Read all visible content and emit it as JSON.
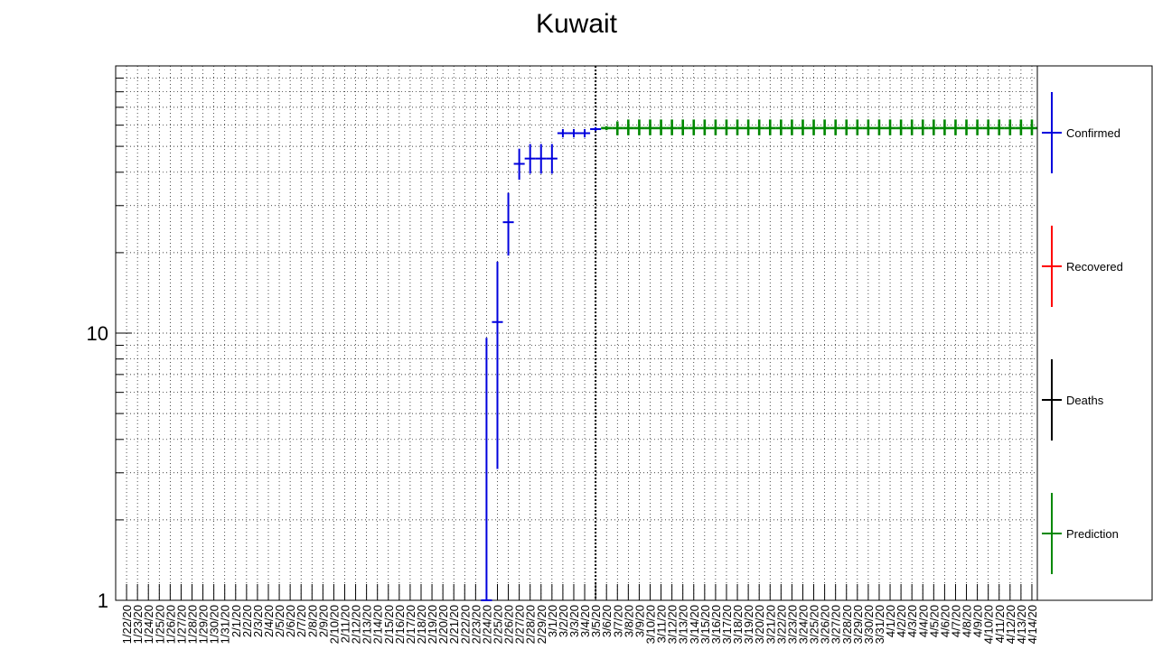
{
  "chart_data": {
    "type": "scatter",
    "title": "Kuwait",
    "xlabel": "",
    "ylabel": "",
    "yscale": "log",
    "ylim": [
      1,
      100
    ],
    "y_tick_labels": [
      "1",
      "10"
    ],
    "grid": true,
    "legend_position": "right",
    "categories": [
      "1/22/20",
      "1/23/20",
      "1/24/20",
      "1/25/20",
      "1/26/20",
      "1/27/20",
      "1/28/20",
      "1/29/20",
      "1/30/20",
      "1/31/20",
      "2/1/20",
      "2/2/20",
      "2/3/20",
      "2/4/20",
      "2/5/20",
      "2/6/20",
      "2/7/20",
      "2/8/20",
      "2/9/20",
      "2/10/20",
      "2/11/20",
      "2/12/20",
      "2/13/20",
      "2/14/20",
      "2/15/20",
      "2/16/20",
      "2/17/20",
      "2/18/20",
      "2/19/20",
      "2/20/20",
      "2/21/20",
      "2/22/20",
      "2/23/20",
      "2/24/20",
      "2/25/20",
      "2/26/20",
      "2/27/20",
      "2/28/20",
      "2/29/20",
      "3/1/20",
      "3/2/20",
      "3/3/20",
      "3/4/20",
      "3/5/20",
      "3/6/20",
      "3/7/20",
      "3/8/20",
      "3/9/20",
      "3/10/20",
      "3/11/20",
      "3/12/20",
      "3/13/20",
      "3/14/20",
      "3/15/20",
      "3/16/20",
      "3/17/20",
      "3/18/20",
      "3/19/20",
      "3/20/20",
      "3/21/20",
      "3/22/20",
      "3/23/20",
      "3/24/20",
      "3/25/20",
      "3/26/20",
      "3/27/20",
      "3/28/20",
      "3/29/20",
      "3/30/20",
      "3/31/20",
      "4/1/20",
      "4/2/20",
      "4/3/20",
      "4/4/20",
      "4/5/20",
      "4/6/20",
      "4/7/20",
      "4/8/20",
      "4/9/20",
      "4/10/20",
      "4/11/20",
      "4/12/20",
      "4/13/20",
      "4/14/20"
    ],
    "vertical_line_category": "3/5/20",
    "series": [
      {
        "name": "Confirmed",
        "color": "#0000dd",
        "points": [
          {
            "x": "2/24/20",
            "y": 1,
            "yerr": [
              0,
              9.6
            ]
          },
          {
            "x": "2/25/20",
            "y": 11,
            "yerr": [
              3.1,
              18.5
            ]
          },
          {
            "x": "2/26/20",
            "y": 26,
            "yerr": [
              19.5,
              33.5
            ]
          },
          {
            "x": "2/27/20",
            "y": 43,
            "yerr": [
              37.5,
              49
            ]
          },
          {
            "x": "2/28/20",
            "y": 45,
            "yerr": [
              39.5,
              51
            ]
          },
          {
            "x": "2/29/20",
            "y": 45,
            "yerr": [
              39.5,
              51
            ]
          },
          {
            "x": "3/1/20",
            "y": 45,
            "yerr": [
              39.5,
              51
            ]
          },
          {
            "x": "3/2/20",
            "y": 56,
            "yerr": [
              54,
              58
            ]
          },
          {
            "x": "3/3/20",
            "y": 56,
            "yerr": [
              54,
              58
            ]
          },
          {
            "x": "3/4/20",
            "y": 56,
            "yerr": [
              54,
              58
            ]
          },
          {
            "x": "3/5/20",
            "y": 58,
            "yerr": [
              57,
              59
            ]
          }
        ]
      },
      {
        "name": "Recovered",
        "color": "#ff0000",
        "points": []
      },
      {
        "name": "Deaths",
        "color": "#000000",
        "points": []
      },
      {
        "name": "Prediction",
        "color": "#008800",
        "points": [
          {
            "x": "3/6/20",
            "y": 58.5,
            "yerr": [
              57.5,
              59.5
            ]
          },
          {
            "x": "3/7/20",
            "y": 58.5,
            "yerr": [
              55,
              62
            ]
          },
          {
            "x": "3/8/20",
            "y": 58.5,
            "yerr": [
              55,
              63
            ]
          },
          {
            "x": "3/9/20",
            "y": 58.5,
            "yerr": [
              55,
              63
            ]
          },
          {
            "x": "3/10/20",
            "y": 58.5,
            "yerr": [
              55,
              63
            ]
          },
          {
            "x": "3/11/20",
            "y": 58.5,
            "yerr": [
              55,
              63
            ]
          },
          {
            "x": "3/12/20",
            "y": 58.5,
            "yerr": [
              55,
              63
            ]
          },
          {
            "x": "3/13/20",
            "y": 58.5,
            "yerr": [
              55,
              63
            ]
          },
          {
            "x": "3/14/20",
            "y": 58.5,
            "yerr": [
              55,
              63
            ]
          },
          {
            "x": "3/15/20",
            "y": 58.5,
            "yerr": [
              55,
              63
            ]
          },
          {
            "x": "3/16/20",
            "y": 58.5,
            "yerr": [
              55,
              63
            ]
          },
          {
            "x": "3/17/20",
            "y": 58.5,
            "yerr": [
              55,
              63
            ]
          },
          {
            "x": "3/18/20",
            "y": 58.5,
            "yerr": [
              55,
              63
            ]
          },
          {
            "x": "3/19/20",
            "y": 58.5,
            "yerr": [
              55,
              63
            ]
          },
          {
            "x": "3/20/20",
            "y": 58.5,
            "yerr": [
              55,
              63
            ]
          },
          {
            "x": "3/21/20",
            "y": 58.5,
            "yerr": [
              55,
              63
            ]
          },
          {
            "x": "3/22/20",
            "y": 58.5,
            "yerr": [
              55,
              63
            ]
          },
          {
            "x": "3/23/20",
            "y": 58.5,
            "yerr": [
              55,
              63
            ]
          },
          {
            "x": "3/24/20",
            "y": 58.5,
            "yerr": [
              55,
              63
            ]
          },
          {
            "x": "3/25/20",
            "y": 58.5,
            "yerr": [
              55,
              63
            ]
          },
          {
            "x": "3/26/20",
            "y": 58.5,
            "yerr": [
              55,
              63
            ]
          },
          {
            "x": "3/27/20",
            "y": 58.5,
            "yerr": [
              55,
              63
            ]
          },
          {
            "x": "3/28/20",
            "y": 58.5,
            "yerr": [
              55,
              63
            ]
          },
          {
            "x": "3/29/20",
            "y": 58.5,
            "yerr": [
              55,
              63
            ]
          },
          {
            "x": "3/30/20",
            "y": 58.5,
            "yerr": [
              55,
              63
            ]
          },
          {
            "x": "3/31/20",
            "y": 58.5,
            "yerr": [
              55,
              63
            ]
          },
          {
            "x": "4/1/20",
            "y": 58.5,
            "yerr": [
              55,
              63
            ]
          },
          {
            "x": "4/2/20",
            "y": 58.5,
            "yerr": [
              55,
              63
            ]
          },
          {
            "x": "4/3/20",
            "y": 58.5,
            "yerr": [
              55,
              63
            ]
          },
          {
            "x": "4/4/20",
            "y": 58.5,
            "yerr": [
              55,
              63
            ]
          },
          {
            "x": "4/5/20",
            "y": 58.5,
            "yerr": [
              55,
              63
            ]
          },
          {
            "x": "4/6/20",
            "y": 58.5,
            "yerr": [
              55,
              63
            ]
          },
          {
            "x": "4/7/20",
            "y": 58.5,
            "yerr": [
              55,
              63
            ]
          },
          {
            "x": "4/8/20",
            "y": 58.5,
            "yerr": [
              55,
              63
            ]
          },
          {
            "x": "4/9/20",
            "y": 58.5,
            "yerr": [
              55,
              63
            ]
          },
          {
            "x": "4/10/20",
            "y": 58.5,
            "yerr": [
              55,
              63
            ]
          },
          {
            "x": "4/11/20",
            "y": 58.5,
            "yerr": [
              55,
              63
            ]
          },
          {
            "x": "4/12/20",
            "y": 58.5,
            "yerr": [
              55,
              63
            ]
          },
          {
            "x": "4/13/20",
            "y": 58.5,
            "yerr": [
              55,
              63
            ]
          },
          {
            "x": "4/14/20",
            "y": 58.5,
            "yerr": [
              55,
              63
            ]
          }
        ]
      }
    ]
  }
}
